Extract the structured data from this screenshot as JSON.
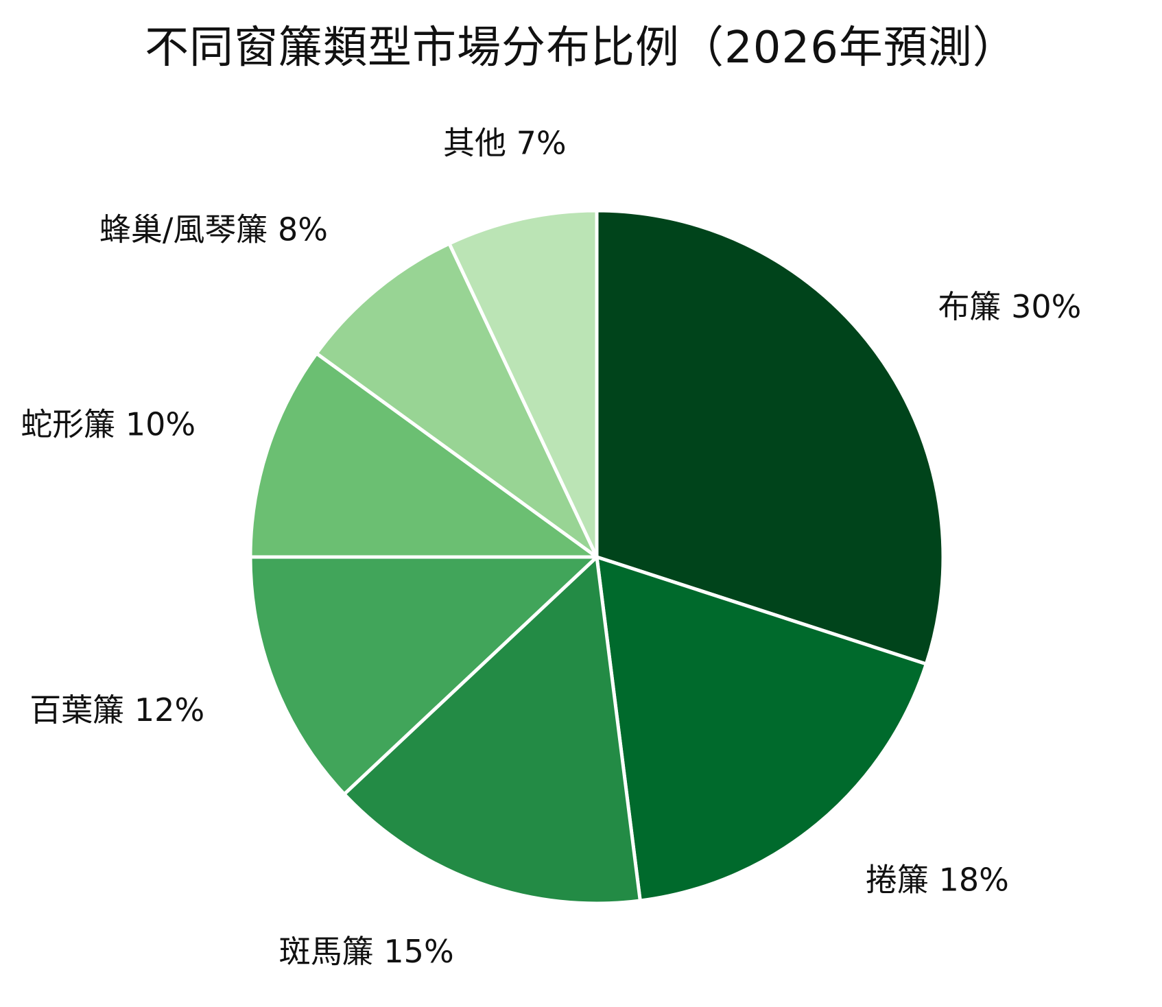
{
  "chart_data": {
    "type": "pie",
    "title": "不同窗簾類型市場分布比例（2026年預測）",
    "slices": [
      {
        "label": "布簾 30%",
        "category": "布簾",
        "value": 30,
        "color": "#00441b"
      },
      {
        "label": "捲簾 18%",
        "category": "捲簾",
        "value": 18,
        "color": "#006a2c"
      },
      {
        "label": "斑馬簾 15%",
        "category": "斑馬簾",
        "value": 15,
        "color": "#238b45"
      },
      {
        "label": "百葉簾 12%",
        "category": "百葉簾",
        "value": 12,
        "color": "#41a55a"
      },
      {
        "label": "蛇形簾 10%",
        "category": "蛇形簾",
        "value": 10,
        "color": "#6bbf72"
      },
      {
        "label": "蜂巢/風琴簾 8%",
        "category": "蜂巢/風琴簾",
        "value": 8,
        "color": "#98d494"
      },
      {
        "label": "其他 7%",
        "category": "其他",
        "value": 7,
        "color": "#bbe4b5"
      }
    ],
    "start_angle_deg": 90,
    "direction": "clockwise",
    "legend": "none"
  }
}
